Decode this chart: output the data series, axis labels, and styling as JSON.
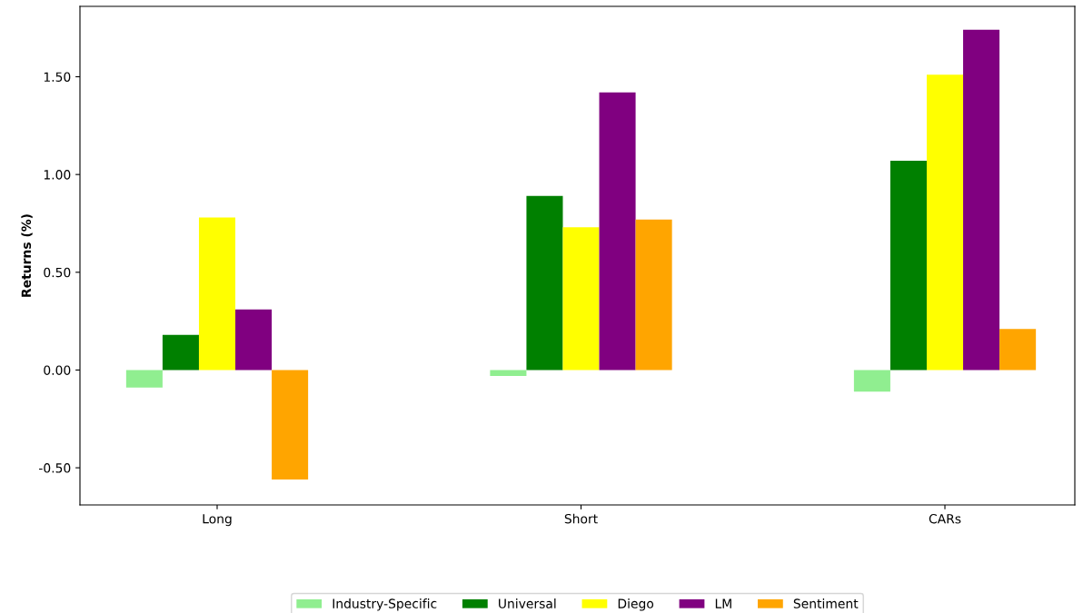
{
  "chart_data": {
    "type": "bar",
    "ylabel": "Returns (%)",
    "categories": [
      "Long",
      "Short",
      "CARs"
    ],
    "series": [
      {
        "name": "Industry-Specific",
        "color": "#90ee90",
        "values": [
          -0.09,
          -0.03,
          -0.11
        ]
      },
      {
        "name": "Universal",
        "color": "#008000",
        "values": [
          0.18,
          0.89,
          1.07
        ]
      },
      {
        "name": "Diego",
        "color": "#ffff00",
        "values": [
          0.78,
          0.73,
          1.51
        ]
      },
      {
        "name": "LM",
        "color": "#800080",
        "values": [
          0.31,
          1.42,
          1.74
        ]
      },
      {
        "name": "Sentiment",
        "color": "#ffa500",
        "values": [
          -0.56,
          0.77,
          0.21
        ]
      }
    ],
    "ylim": [
      -0.69,
      1.86
    ],
    "yticks": [
      {
        "value": -0.5,
        "label": "-0.50"
      },
      {
        "value": 0,
        "label": "0.00"
      },
      {
        "value": 0.5,
        "label": "0.50"
      },
      {
        "value": 1.0,
        "label": "1.00"
      },
      {
        "value": 1.5,
        "label": "1.50"
      }
    ],
    "legend": "bottom",
    "grid": false
  }
}
